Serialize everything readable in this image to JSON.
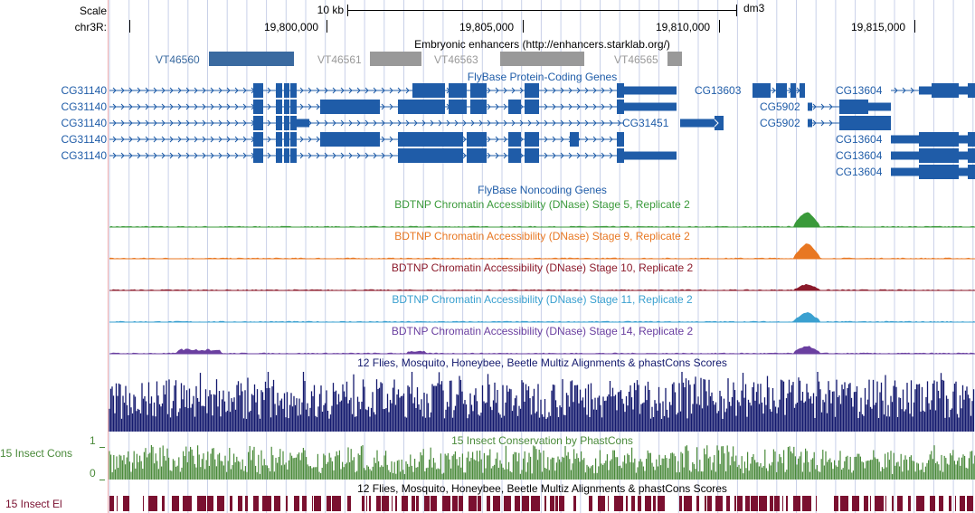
{
  "header": {
    "scale_label": "Scale",
    "chrom_label": "chr3R:",
    "scale_bar_label": "10 kb",
    "assembly": "dm3",
    "positions": [
      "19,800,000",
      "19,805,000",
      "19,810,000",
      "19,815,000"
    ]
  },
  "enhancers": {
    "track_title": "Embryonic enhancers (http://enhancers.starklab.org/)",
    "items": [
      {
        "name": "VT46560",
        "color": "#3a6aa0"
      },
      {
        "name": "VT46561",
        "color": "#999999"
      },
      {
        "name": "VT46563",
        "color": "#999999"
      },
      {
        "name": "VT46565",
        "color": "#999999"
      }
    ]
  },
  "protein_coding": {
    "track_title": "FlyBase Protein-Coding Genes",
    "color": "#1f5ca8",
    "left_genes": [
      "CG31140",
      "CG31140",
      "CG31140",
      "CG31140",
      "CG31140"
    ],
    "right_genes": {
      "cg13603": "CG13603",
      "cg31451": "CG31451",
      "cg5902_a": "CG5902",
      "cg5902_b": "CG5902",
      "cg13604_a": "CG13604",
      "cg13604_b": "CG13604",
      "cg13604_c": "CG13604",
      "cg13604_d": "CG13604"
    }
  },
  "noncoding": {
    "track_title": "FlyBase Noncoding Genes"
  },
  "dnase_tracks": [
    {
      "title": "BDTNP Chromatin Accessibility (DNase) Stage 5, Replicate 2",
      "color": "#3a9a3a"
    },
    {
      "title": "BDTNP Chromatin Accessibility (DNase) Stage 9, Replicate 2",
      "color": "#e87722"
    },
    {
      "title": "BDTNP Chromatin Accessibility (DNase) Stage 10, Replicate 2",
      "color": "#8b1a2b"
    },
    {
      "title": "BDTNP Chromatin Accessibility (DNase) Stage 11, Replicate 2",
      "color": "#3aa0d0"
    },
    {
      "title": "BDTNP Chromatin Accessibility (DNase) Stage 14, Replicate 2",
      "color": "#6a3fa0"
    }
  ],
  "multiz": {
    "track_title": "12 Flies, Mosquito, Honeybee, Beetle Multiz Alignments & phastCons Scores",
    "color": "#141a6e"
  },
  "phastcons": {
    "side_label": "15 Insect Cons",
    "axis_max": "1",
    "axis_min": "0",
    "track_title": "15 Insect Conservation by PhastCons",
    "color": "#4a8a3a"
  },
  "elements": {
    "side_label": "15 Insect El",
    "track_title": "12 Flies, Mosquito, Honeybee, Beetle Multiz Alignments & phastCons Scores",
    "color": "#7a1030"
  }
}
